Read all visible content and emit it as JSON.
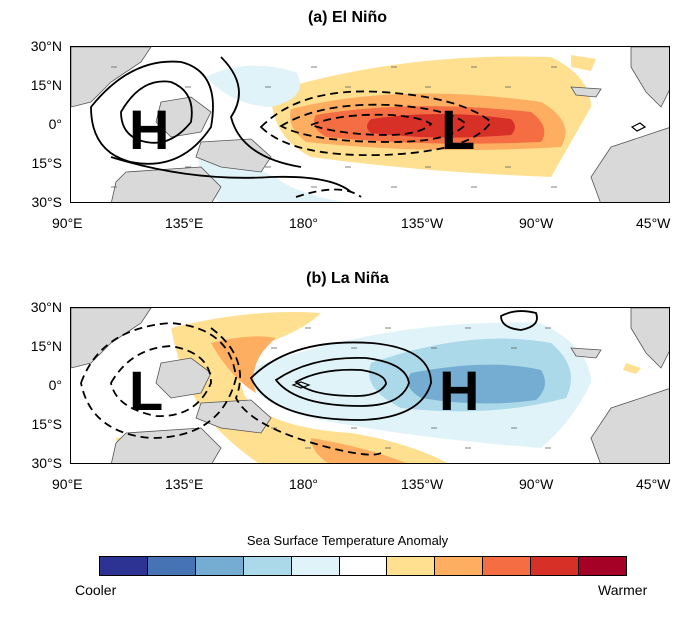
{
  "panels": [
    {
      "title": "(a) El Niño",
      "high_label": "H",
      "low_label": "L"
    },
    {
      "title": "(b) La Niña",
      "high_label": "H",
      "low_label": "L"
    }
  ],
  "lat_ticks": [
    "30°N",
    "15°N",
    "0°",
    "15°S",
    "30°S"
  ],
  "lon_ticks": [
    "90°E",
    "135°E",
    "180°",
    "135°W",
    "90°W",
    "45°W"
  ],
  "legend": {
    "title": "Sea Surface Temperature Anomaly",
    "low_label": "Cooler",
    "high_label": "Warmer",
    "colors": [
      "#2c3393",
      "#4573b4",
      "#74add1",
      "#abd9e9",
      "#e0f3f8",
      "#ffffff",
      "#fee090",
      "#fdae61",
      "#f46d43",
      "#d73027",
      "#a50026"
    ]
  },
  "colors": {
    "land": "#d9d9d9",
    "coast": "#555555",
    "contour": "#000000",
    "arrow": "#555555"
  }
}
